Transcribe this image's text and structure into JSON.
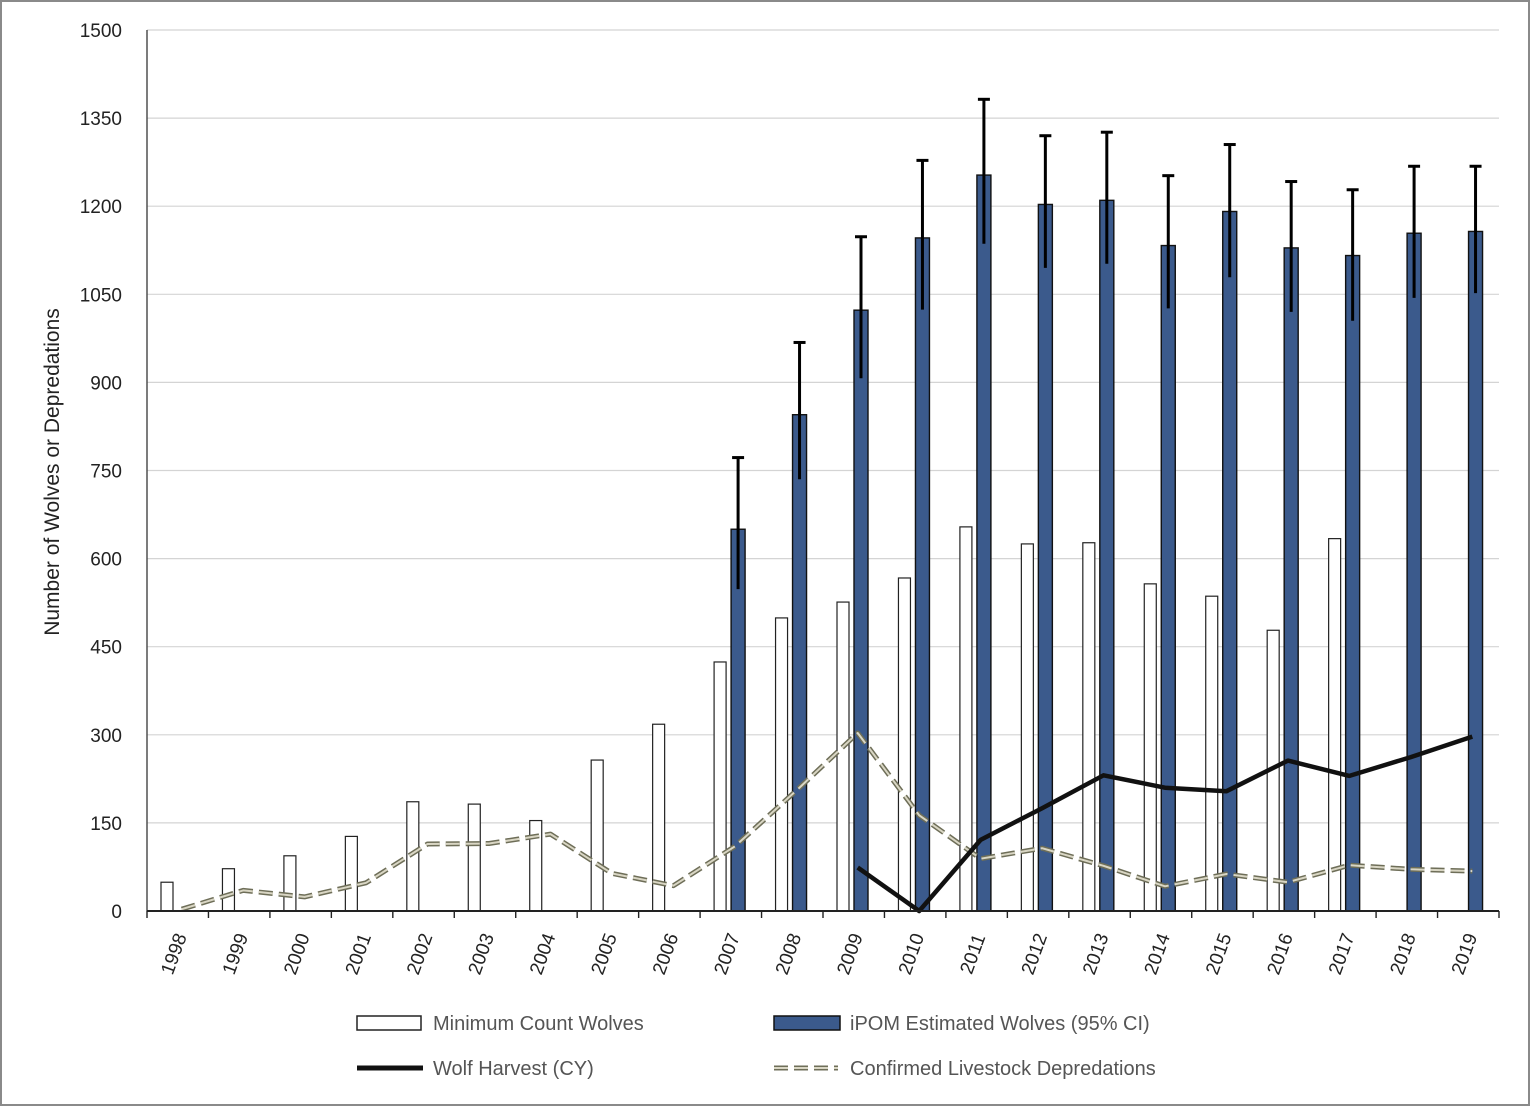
{
  "chart_data": {
    "type": "bar",
    "title": "",
    "xlabel": "",
    "ylabel": "Number  of Wolves or Depredations",
    "ylim": [
      0,
      1500
    ],
    "yticks": [
      0,
      150,
      300,
      450,
      600,
      750,
      900,
      1050,
      1200,
      1350,
      1500
    ],
    "ytick_labels": [
      "0",
      "150",
      "300",
      "450",
      "600",
      "750",
      "900",
      "1050",
      "1200",
      "1350",
      "1500"
    ],
    "grid": true,
    "legend_position": "bottom",
    "categories": [
      "1998",
      "1999",
      "2000",
      "2001",
      "2002",
      "2003",
      "2004",
      "2005",
      "2006",
      "2007",
      "2008",
      "2009",
      "2010",
      "2011",
      "2012",
      "2013",
      "2014",
      "2015",
      "2016",
      "2017",
      "2018",
      "2019"
    ],
    "series": [
      {
        "name": "Minimum Count Wolves",
        "kind": "bar",
        "color": "#ffffff",
        "values": [
          49,
          72,
          94,
          127,
          186,
          182,
          154,
          257,
          318,
          424,
          499,
          526,
          567,
          654,
          625,
          627,
          557,
          536,
          478,
          634,
          null,
          null
        ]
      },
      {
        "name": "iPOM Estimated Wolves (95% CI)",
        "kind": "bar",
        "color": "#3b5a8c",
        "values": [
          null,
          null,
          null,
          null,
          null,
          null,
          null,
          null,
          null,
          650,
          845,
          1023,
          1146,
          1253,
          1203,
          1210,
          1133,
          1191,
          1129,
          1116,
          1154,
          1157
        ],
        "ci_lower": [
          null,
          null,
          null,
          null,
          null,
          null,
          null,
          null,
          null,
          548,
          735,
          907,
          1024,
          1136,
          1095,
          1102,
          1026,
          1079,
          1020,
          1005,
          1044,
          1052
        ],
        "ci_upper": [
          null,
          null,
          null,
          null,
          null,
          null,
          null,
          null,
          null,
          772,
          968,
          1148,
          1278,
          1382,
          1320,
          1326,
          1252,
          1305,
          1242,
          1228,
          1268,
          1268
        ]
      },
      {
        "name": "Wolf Harvest (CY)",
        "kind": "line",
        "color": "#111111",
        "values": [
          null,
          null,
          null,
          null,
          null,
          null,
          null,
          null,
          null,
          null,
          null,
          74,
          0,
          121,
          175,
          231,
          210,
          204,
          256,
          230,
          262,
          297
        ]
      },
      {
        "name": "Confirmed Livestock Depredations",
        "kind": "dashed-line",
        "color": "#8a8a70",
        "values": [
          3,
          35,
          24,
          48,
          114,
          115,
          131,
          64,
          43,
          110,
          205,
          303,
          163,
          89,
          107,
          77,
          42,
          63,
          49,
          78,
          71,
          68
        ]
      }
    ]
  }
}
